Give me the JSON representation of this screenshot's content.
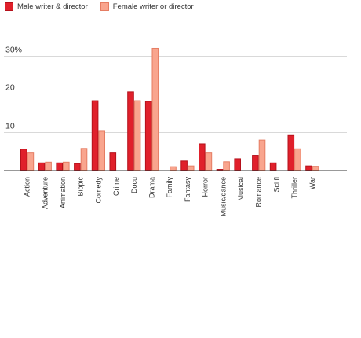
{
  "chart_data": {
    "type": "bar",
    "title": "",
    "xlabel": "",
    "ylabel": "",
    "ylim": [
      0,
      32
    ],
    "yticks": [
      {
        "value": 10,
        "label": "10"
      },
      {
        "value": 20,
        "label": "20"
      },
      {
        "value": 30,
        "label": "30%"
      }
    ],
    "grid": true,
    "legend_position": "top-left",
    "categories": [
      "Action",
      "Adventure",
      "Animation",
      "Biopic",
      "Comedy",
      "Crime",
      "Docu",
      "Drama",
      "Family",
      "Fantasy",
      "Horror",
      "Music/dance",
      "Musical",
      "Romance",
      "Sci fi",
      "Thriller",
      "War"
    ],
    "series": [
      {
        "name": "Male writer & director",
        "color": "#e0202b",
        "border": "#b5111b",
        "values": [
          5.6,
          2.0,
          2.0,
          1.8,
          18.3,
          4.6,
          20.6,
          18.1,
          0.0,
          2.5,
          7.0,
          0.3,
          3.1,
          4.0,
          2.0,
          9.2,
          1.2
        ]
      },
      {
        "name": "Female writer or director",
        "color": "#f9a58e",
        "border": "#e57d63",
        "values": [
          4.6,
          2.2,
          2.2,
          5.8,
          10.3,
          0.0,
          18.3,
          32.0,
          1.0,
          1.2,
          4.6,
          2.3,
          0.0,
          8.0,
          0.0,
          5.7,
          1.1
        ]
      }
    ]
  }
}
